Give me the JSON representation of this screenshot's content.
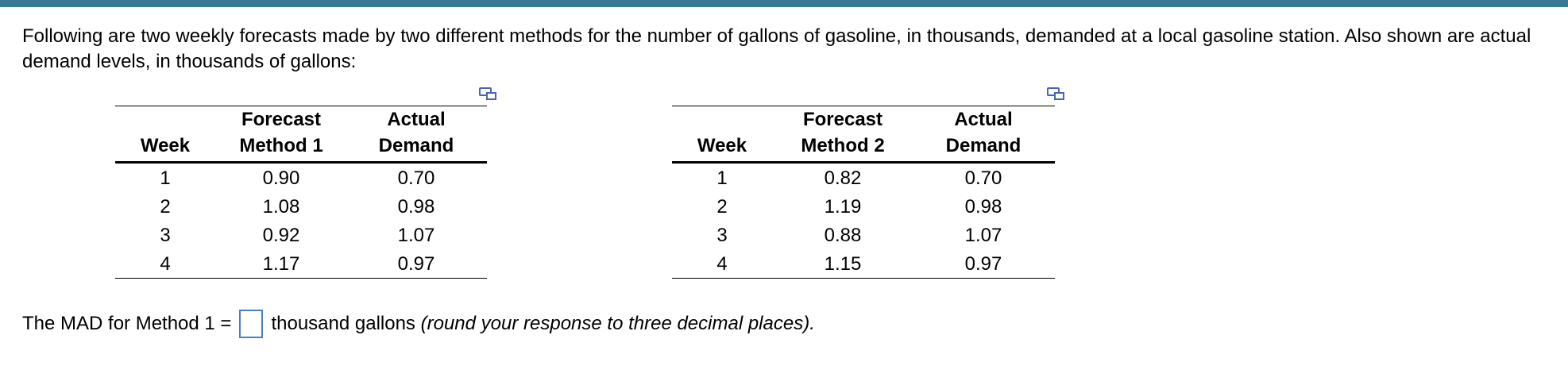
{
  "intro": "Following are two weekly forecasts made by two different methods for the number of gallons of gasoline, in thousands, demanded at a local gasoline station. Also shown are actual demand levels, in thousands of gallons:",
  "tables": [
    {
      "headers": [
        [
          "Week"
        ],
        [
          "Forecast",
          "Method 1"
        ],
        [
          "Actual",
          "Demand"
        ]
      ],
      "rows": [
        [
          "1",
          "0.90",
          "0.70"
        ],
        [
          "2",
          "1.08",
          "0.98"
        ],
        [
          "3",
          "0.92",
          "1.07"
        ],
        [
          "4",
          "1.17",
          "0.97"
        ]
      ]
    },
    {
      "headers": [
        [
          "Week"
        ],
        [
          "Forecast",
          "Method 2"
        ],
        [
          "Actual",
          "Demand"
        ]
      ],
      "rows": [
        [
          "1",
          "0.82",
          "0.70"
        ],
        [
          "2",
          "1.19",
          "0.98"
        ],
        [
          "3",
          "0.88",
          "1.07"
        ],
        [
          "4",
          "1.15",
          "0.97"
        ]
      ]
    }
  ],
  "question": {
    "prefix": "The MAD for Method 1 =",
    "suffix": "thousand gallons",
    "hint": "(round your response to three decimal places)."
  }
}
